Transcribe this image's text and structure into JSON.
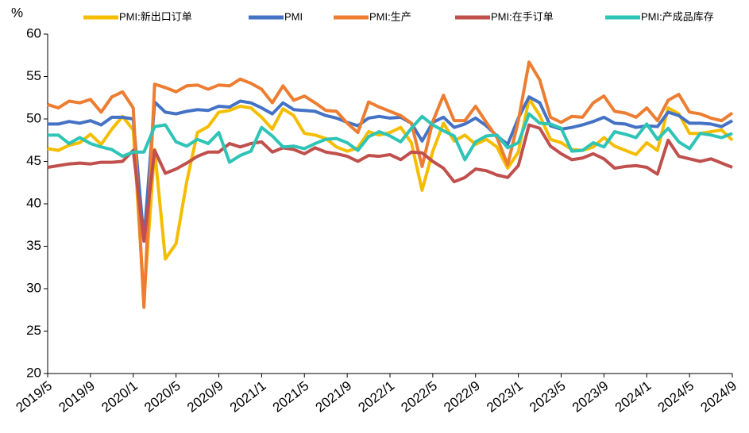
{
  "chart_data": {
    "type": "line",
    "y_label": "%",
    "categories": [
      "2019/5",
      null,
      null,
      null,
      "2019/9",
      null,
      null,
      null,
      "2020/1",
      null,
      null,
      null,
      "2020/5",
      null,
      null,
      null,
      "2020/9",
      null,
      null,
      null,
      "2021/1",
      null,
      null,
      null,
      "2021/5",
      null,
      null,
      null,
      "2021/9",
      null,
      null,
      null,
      "2022/1",
      null,
      null,
      null,
      "2022/5",
      null,
      null,
      null,
      "2022/9",
      null,
      null,
      null,
      "2023/1",
      null,
      null,
      null,
      "2023/5",
      null,
      null,
      null,
      "2023/9",
      null,
      null,
      null,
      "2024/1",
      null,
      null,
      null,
      "2024/5",
      null,
      null,
      null,
      "2024/9"
    ],
    "series": [
      {
        "name": "PMI:新出口订单",
        "color": "#f5bd00",
        "values": [
          46.5,
          46.3,
          46.9,
          47.2,
          48.2,
          47.0,
          48.8,
          50.3,
          48.7,
          28.7,
          46.4,
          33.5,
          35.3,
          42.6,
          48.4,
          49.1,
          50.8,
          51.0,
          51.5,
          51.3,
          50.2,
          48.8,
          51.2,
          50.4,
          48.3,
          48.1,
          47.7,
          46.7,
          46.2,
          46.6,
          48.5,
          48.1,
          48.4,
          49.0,
          47.2,
          41.6,
          46.2,
          49.5,
          47.4,
          48.1,
          47.0,
          47.6,
          46.7,
          44.2,
          46.1,
          52.4,
          50.4,
          47.6,
          47.2,
          46.4,
          46.3,
          46.7,
          47.8,
          46.8,
          46.3,
          45.8,
          47.2,
          46.3,
          51.3,
          50.6,
          48.3,
          48.3,
          48.5,
          48.7,
          47.5
        ]
      },
      {
        "name": "PMI",
        "color": "#4472c4",
        "values": [
          49.4,
          49.4,
          49.7,
          49.5,
          49.8,
          49.3,
          50.2,
          50.2,
          50.0,
          35.7,
          52.0,
          50.8,
          50.6,
          50.9,
          51.1,
          51.0,
          51.5,
          51.4,
          52.1,
          51.9,
          51.3,
          50.6,
          51.9,
          51.1,
          51.0,
          50.9,
          50.4,
          50.1,
          49.6,
          49.2,
          50.1,
          50.3,
          50.1,
          50.2,
          49.5,
          47.4,
          49.6,
          50.2,
          49.0,
          49.4,
          50.1,
          49.2,
          48.0,
          47.0,
          50.1,
          52.6,
          51.9,
          49.2,
          48.8,
          49.0,
          49.3,
          49.7,
          50.2,
          49.5,
          49.4,
          49.0,
          49.2,
          49.1,
          50.8,
          50.4,
          49.5,
          49.5,
          49.4,
          49.1,
          49.8
        ]
      },
      {
        "name": "PMI:生产",
        "color": "#ed7d31",
        "values": [
          51.7,
          51.3,
          52.1,
          51.9,
          52.3,
          50.8,
          52.6,
          53.2,
          51.3,
          27.8,
          54.1,
          53.7,
          53.2,
          53.9,
          54.0,
          53.5,
          54.0,
          53.9,
          54.7,
          54.2,
          53.5,
          51.9,
          53.9,
          52.2,
          52.7,
          51.9,
          51.0,
          50.9,
          49.5,
          48.4,
          52.0,
          51.4,
          50.9,
          50.4,
          49.5,
          44.4,
          49.7,
          52.8,
          49.8,
          49.8,
          51.5,
          49.6,
          47.8,
          44.6,
          49.8,
          56.7,
          54.6,
          50.2,
          49.6,
          50.3,
          50.2,
          51.9,
          52.7,
          50.9,
          50.7,
          50.2,
          51.3,
          49.8,
          52.2,
          52.9,
          50.8,
          50.6,
          50.1,
          49.8,
          50.7
        ]
      },
      {
        "name": "PMI:在手订单",
        "color": "#c0504d",
        "values": [
          44.3,
          44.5,
          44.7,
          44.8,
          44.7,
          44.9,
          44.9,
          45.0,
          46.3,
          35.6,
          46.3,
          43.6,
          44.1,
          44.8,
          45.6,
          46.1,
          46.1,
          47.1,
          46.7,
          47.1,
          47.3,
          46.1,
          46.6,
          46.4,
          45.9,
          46.6,
          46.1,
          45.9,
          45.6,
          45.0,
          45.7,
          45.6,
          45.8,
          45.2,
          46.1,
          46.0,
          45.0,
          44.2,
          42.6,
          43.1,
          44.1,
          43.9,
          43.4,
          43.1,
          44.5,
          49.3,
          48.9,
          46.8,
          45.9,
          45.2,
          45.4,
          45.9,
          45.3,
          44.2,
          44.4,
          44.5,
          44.3,
          43.5,
          47.5,
          45.6,
          45.3,
          45.0,
          45.3,
          44.8,
          44.3
        ]
      },
      {
        "name": "PMI:产成品库存",
        "color": "#2ec4b6",
        "values": [
          48.1,
          48.1,
          47.1,
          47.8,
          47.1,
          46.7,
          46.4,
          45.6,
          46.1,
          46.1,
          49.1,
          49.3,
          47.3,
          46.8,
          47.6,
          47.1,
          48.4,
          44.9,
          45.7,
          46.2,
          49.0,
          48.0,
          46.7,
          46.8,
          46.5,
          47.1,
          47.6,
          47.7,
          47.2,
          46.3,
          47.9,
          48.5,
          48.0,
          47.3,
          48.9,
          50.3,
          49.3,
          48.6,
          48.0,
          45.2,
          47.3,
          48.0,
          48.1,
          46.6,
          47.2,
          50.6,
          49.5,
          49.4,
          48.9,
          46.2,
          46.3,
          47.2,
          46.7,
          48.5,
          48.2,
          47.8,
          49.4,
          47.6,
          48.9,
          47.3,
          46.5,
          48.3,
          48.1,
          47.8,
          48.3
        ]
      }
    ],
    "ylim": [
      20,
      60
    ],
    "yticks": [
      20,
      25,
      30,
      35,
      40,
      45,
      50,
      55,
      60
    ],
    "grid": false,
    "legend": "top"
  }
}
